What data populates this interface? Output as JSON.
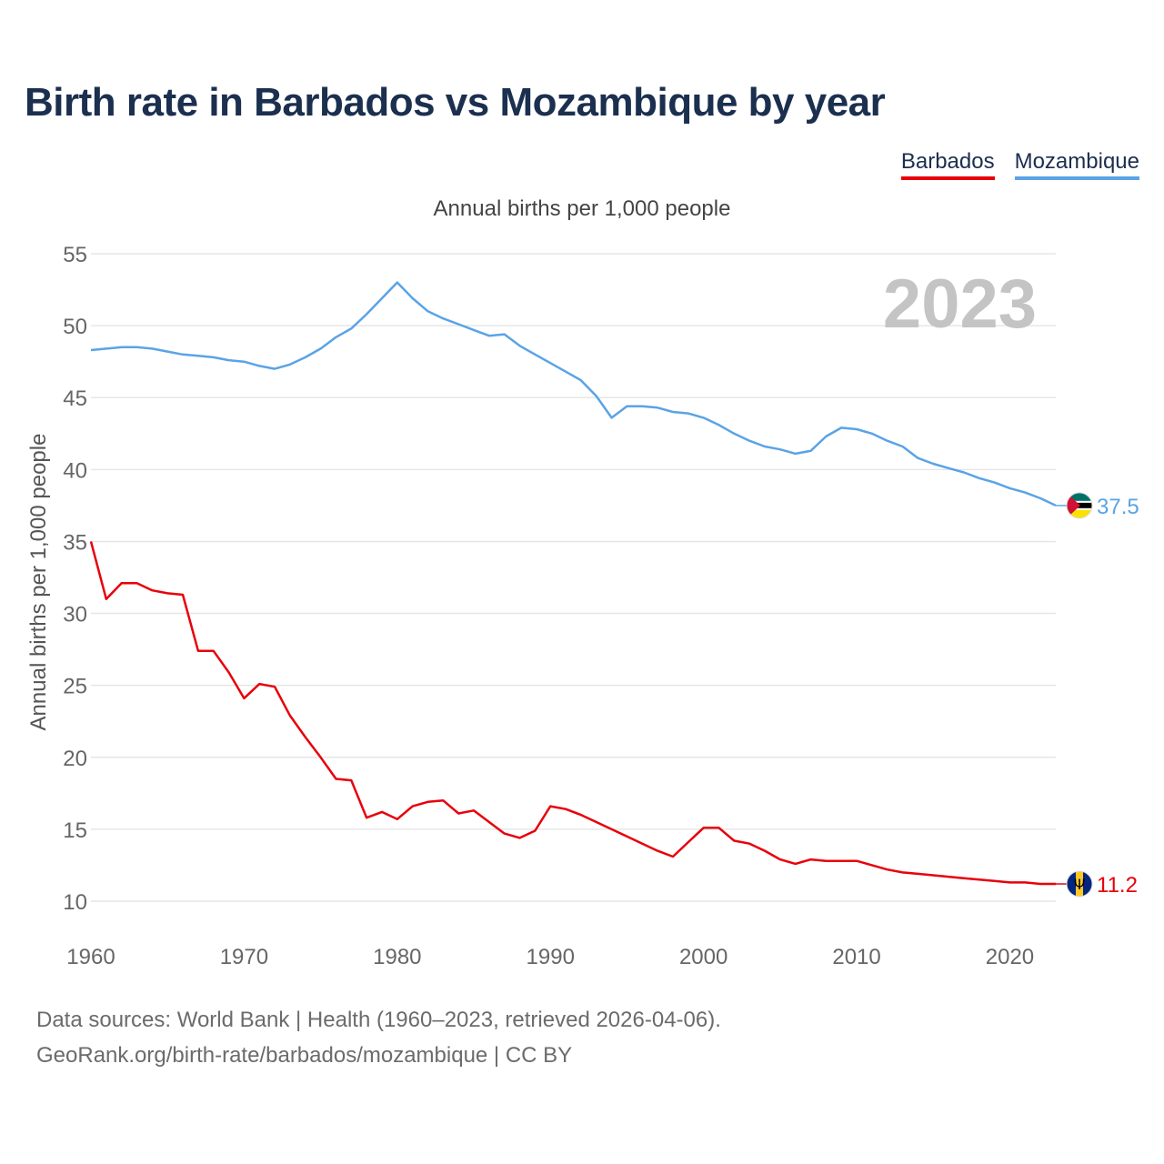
{
  "title": "Birth rate in Barbados vs Mozambique by year",
  "legend": [
    {
      "name": "Barbados",
      "color": "#e8000b"
    },
    {
      "name": "Mozambique",
      "color": "#5aa3e6"
    }
  ],
  "subtitle": "Annual births per 1,000 people",
  "footer": {
    "line1": "Data sources: World Bank | Health (1960–2023, retrieved 2026-04-06).",
    "line2": "GeoRank.org/birth-rate/barbados/mozambique | CC BY"
  },
  "chart_data": {
    "type": "line",
    "title": "Birth rate in Barbados vs Mozambique by year",
    "ylabel": "Annual births per 1,000 people",
    "xlabel": "",
    "ylim": [
      10,
      55
    ],
    "xlim": [
      1960,
      2023
    ],
    "yticks": [
      10,
      15,
      20,
      25,
      30,
      35,
      40,
      45,
      50,
      55
    ],
    "xticks": [
      1960,
      1970,
      1980,
      1990,
      2000,
      2010,
      2020
    ],
    "year_watermark": "2023",
    "x": [
      1960,
      1961,
      1962,
      1963,
      1964,
      1965,
      1966,
      1967,
      1968,
      1969,
      1970,
      1971,
      1972,
      1973,
      1974,
      1975,
      1976,
      1977,
      1978,
      1979,
      1980,
      1981,
      1982,
      1983,
      1984,
      1985,
      1986,
      1987,
      1988,
      1989,
      1990,
      1991,
      1992,
      1993,
      1994,
      1995,
      1996,
      1997,
      1998,
      1999,
      2000,
      2001,
      2002,
      2003,
      2004,
      2005,
      2006,
      2007,
      2008,
      2009,
      2010,
      2011,
      2012,
      2013,
      2014,
      2015,
      2016,
      2017,
      2018,
      2019,
      2020,
      2021,
      2022,
      2023
    ],
    "series": [
      {
        "name": "Barbados",
        "color": "#e8000b",
        "end_label": "11.2",
        "values": [
          35.0,
          31.0,
          32.1,
          32.1,
          31.6,
          31.4,
          31.3,
          27.4,
          27.4,
          25.9,
          24.1,
          25.1,
          24.9,
          22.9,
          21.4,
          20.0,
          18.5,
          18.4,
          15.8,
          16.2,
          15.7,
          16.6,
          16.9,
          17.0,
          16.1,
          16.3,
          15.5,
          14.7,
          14.4,
          14.9,
          16.6,
          16.4,
          16.0,
          15.5,
          15.0,
          14.5,
          14.0,
          13.5,
          13.1,
          14.1,
          15.1,
          15.1,
          14.2,
          14.0,
          13.5,
          12.9,
          12.6,
          12.9,
          12.8,
          12.8,
          12.8,
          12.5,
          12.2,
          12.0,
          11.9,
          11.8,
          11.7,
          11.6,
          11.5,
          11.4,
          11.3,
          11.3,
          11.2,
          11.2
        ]
      },
      {
        "name": "Mozambique",
        "color": "#5aa3e6",
        "end_label": "37.5",
        "values": [
          48.3,
          48.4,
          48.5,
          48.5,
          48.4,
          48.2,
          48.0,
          47.9,
          47.8,
          47.6,
          47.5,
          47.2,
          47.0,
          47.3,
          47.8,
          48.4,
          49.2,
          49.8,
          50.8,
          51.9,
          53.0,
          51.9,
          51.0,
          50.5,
          50.1,
          49.7,
          49.3,
          49.4,
          48.6,
          48.0,
          47.4,
          46.8,
          46.2,
          45.1,
          43.6,
          44.4,
          44.4,
          44.3,
          44.0,
          43.9,
          43.6,
          43.1,
          42.5,
          42.0,
          41.6,
          41.4,
          41.1,
          41.3,
          42.3,
          42.9,
          42.8,
          42.5,
          42.0,
          41.6,
          40.8,
          40.4,
          40.1,
          39.8,
          39.4,
          39.1,
          38.7,
          38.4,
          38.0,
          37.5
        ]
      }
    ]
  }
}
